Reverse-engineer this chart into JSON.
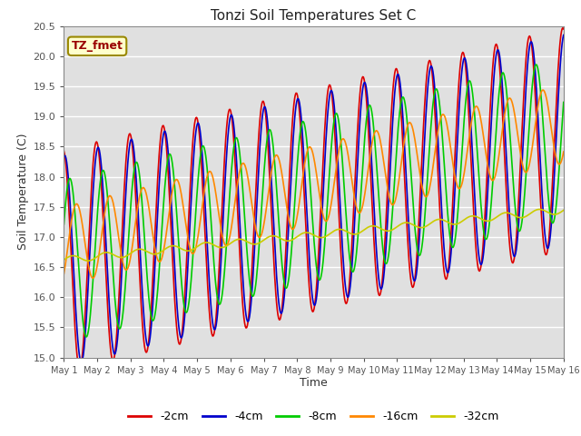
{
  "title": "Tonzi Soil Temperatures Set C",
  "xlabel": "Time",
  "ylabel": "Soil Temperature (C)",
  "ylim": [
    15.0,
    20.5
  ],
  "annotation": "TZ_fmet",
  "line_colors": [
    "#dd0000",
    "#0000cc",
    "#00cc00",
    "#ff8800",
    "#cccc00"
  ],
  "line_labels": [
    "-2cm",
    "-4cm",
    "-8cm",
    "-16cm",
    "-32cm"
  ],
  "bg_color": "#e0e0e0",
  "fig_color": "#ffffff",
  "grid_color": "#ffffff",
  "x_tick_labels": [
    "May 1",
    "May 2",
    "May 3",
    "May 4",
    "May 5",
    "May 6",
    "May 7",
    "May 8",
    "May 9",
    "May 10",
    "May 11",
    "May 12",
    "May 13",
    "May 14",
    "May 15",
    "May 16"
  ],
  "n_days": 15,
  "spd": 48
}
